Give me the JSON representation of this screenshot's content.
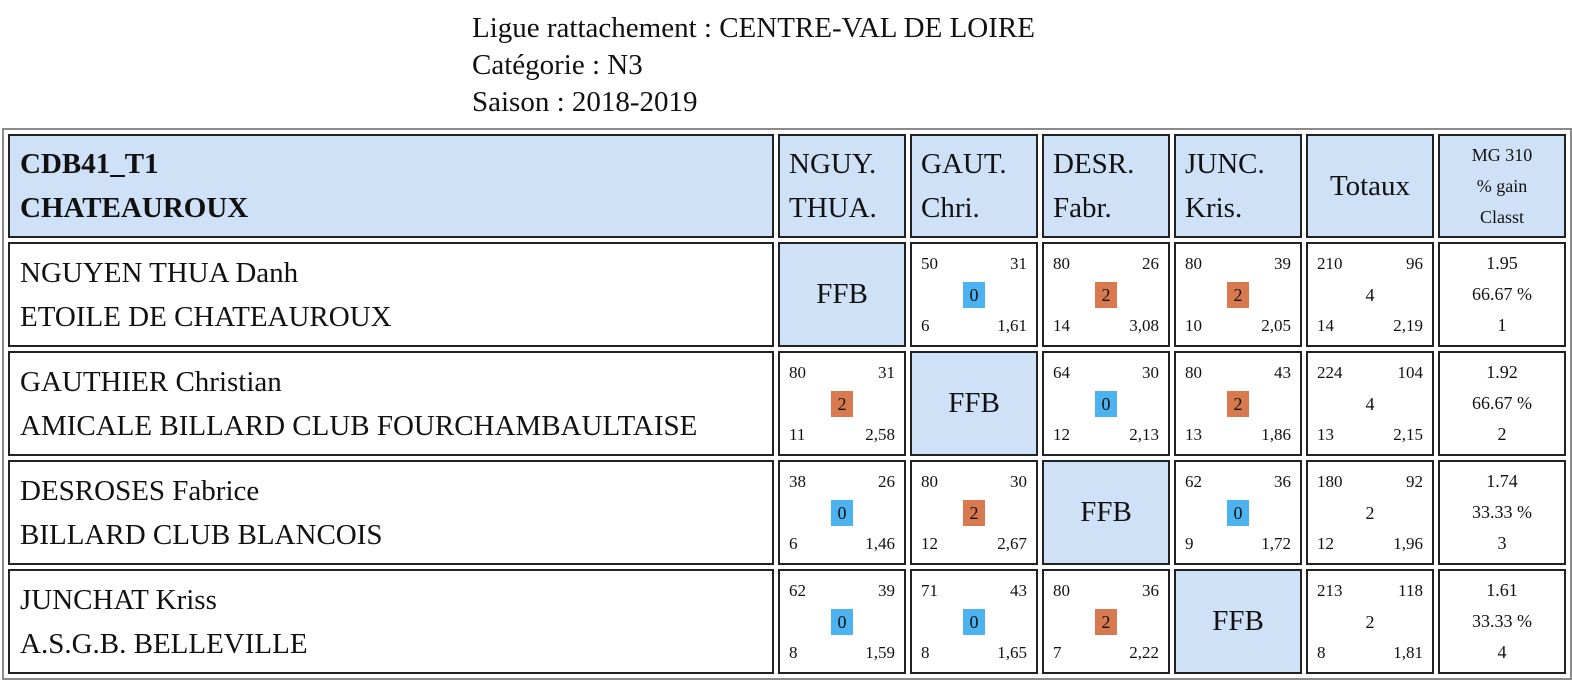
{
  "header": {
    "ligue": "Ligue rattachement : CENTRE-VAL DE LOIRE",
    "categorie": "Catégorie : N3",
    "saison": "Saison : 2018-2019"
  },
  "table": {
    "team_line1": "CDB41_T1",
    "team_line2": "CHATEAUROUX",
    "opponents": [
      {
        "line1": "NGUY.",
        "line2": "THUA."
      },
      {
        "line1": "GAUT.",
        "line2": "Chri."
      },
      {
        "line1": "DESR.",
        "line2": "Fabr."
      },
      {
        "line1": "JUNC.",
        "line2": "Kris."
      }
    ],
    "totaux_label": "Totaux",
    "mg_label1": "MG 310",
    "mg_label2": "% gain",
    "mg_label3": "Classt",
    "ffb_label": "FFB",
    "players": [
      {
        "name": "NGUYEN THUA Danh",
        "club": "ETOILE DE CHATEAUROUX",
        "matches": [
          null,
          {
            "tl": "50",
            "tr": "31",
            "pts": "0",
            "bl": "6",
            "br": "1,61"
          },
          {
            "tl": "80",
            "tr": "26",
            "pts": "2",
            "bl": "14",
            "br": "3,08"
          },
          {
            "tl": "80",
            "tr": "39",
            "pts": "2",
            "bl": "10",
            "br": "2,05"
          }
        ],
        "totals": {
          "tl": "210",
          "tr": "96",
          "pts": "4",
          "bl": "14",
          "br": "2,19"
        },
        "mg": "1.95",
        "pct": "66.67 %",
        "rank": "1"
      },
      {
        "name": "GAUTHIER Christian",
        "club": "AMICALE BILLARD CLUB FOURCHAMBAULTAISE",
        "matches": [
          {
            "tl": "80",
            "tr": "31",
            "pts": "2",
            "bl": "11",
            "br": "2,58"
          },
          null,
          {
            "tl": "64",
            "tr": "30",
            "pts": "0",
            "bl": "12",
            "br": "2,13"
          },
          {
            "tl": "80",
            "tr": "43",
            "pts": "2",
            "bl": "13",
            "br": "1,86"
          }
        ],
        "totals": {
          "tl": "224",
          "tr": "104",
          "pts": "4",
          "bl": "13",
          "br": "2,15"
        },
        "mg": "1.92",
        "pct": "66.67 %",
        "rank": "2"
      },
      {
        "name": "DESROSES Fabrice",
        "club": "BILLARD CLUB BLANCOIS",
        "matches": [
          {
            "tl": "38",
            "tr": "26",
            "pts": "0",
            "bl": "6",
            "br": "1,46"
          },
          {
            "tl": "80",
            "tr": "30",
            "pts": "2",
            "bl": "12",
            "br": "2,67"
          },
          null,
          {
            "tl": "62",
            "tr": "36",
            "pts": "0",
            "bl": "9",
            "br": "1,72"
          }
        ],
        "totals": {
          "tl": "180",
          "tr": "92",
          "pts": "2",
          "bl": "12",
          "br": "1,96"
        },
        "mg": "1.74",
        "pct": "33.33 %",
        "rank": "3"
      },
      {
        "name": "JUNCHAT Kriss",
        "club": "A.S.G.B. BELLEVILLE",
        "matches": [
          {
            "tl": "62",
            "tr": "39",
            "pts": "0",
            "bl": "8",
            "br": "1,59"
          },
          {
            "tl": "71",
            "tr": "43",
            "pts": "0",
            "bl": "8",
            "br": "1,65"
          },
          {
            "tl": "80",
            "tr": "36",
            "pts": "2",
            "bl": "7",
            "br": "2,22"
          },
          null
        ],
        "totals": {
          "tl": "213",
          "tr": "118",
          "pts": "2",
          "bl": "8",
          "br": "1,81"
        },
        "mg": "1.61",
        "pct": "33.33 %",
        "rank": "4"
      }
    ]
  }
}
